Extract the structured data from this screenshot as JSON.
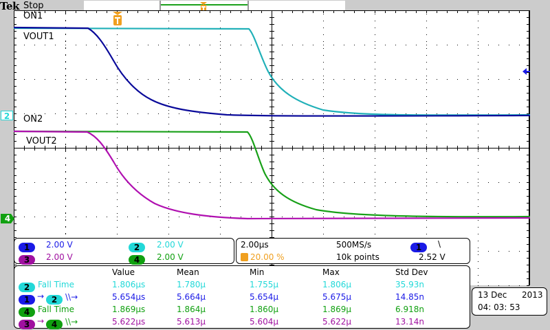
{
  "header": {
    "brand": "Tek",
    "acq_state": "Stop"
  },
  "colors": {
    "ch1": "#1a1ae6",
    "ch2": "#22d8d8",
    "ch3": "#a010a0",
    "ch4": "#10a010",
    "trigger": "#f0a020",
    "ch1_trace": "#0a0a9a",
    "ch2_trace": "#20b0b8",
    "ch3_trace": "#b010b0",
    "ch4_trace": "#18a018"
  },
  "traces": {
    "on1_label": "ON1",
    "vout1_label": "VOUT1",
    "on2_label": "ON2",
    "vout2_label": "VOUT2"
  },
  "markers": {
    "ch2": "2",
    "ch4": "4",
    "trigger": "T"
  },
  "channels": [
    {
      "num": "1",
      "scale": "2.00 V"
    },
    {
      "num": "2",
      "scale": "2.00 V"
    },
    {
      "num": "3",
      "scale": "2.00 V"
    },
    {
      "num": "4",
      "scale": "2.00 V"
    }
  ],
  "timebase": {
    "scale": "2.00µs",
    "trigger_pos": "20.00 %",
    "sample_rate": "500MS/s",
    "record_length": "10k points",
    "trigger_source": "1",
    "trigger_slope": "\\",
    "trigger_level": "2.52 V"
  },
  "measurements": {
    "headers": [
      "Value",
      "Mean",
      "Min",
      "Max",
      "Std Dev"
    ],
    "rows": [
      {
        "label": "Fall Time",
        "src": "2",
        "dst": "",
        "value": "1.806µs",
        "mean": "1.780µ",
        "min": "1.755µ",
        "max": "1.806µ",
        "std": "35.93n"
      },
      {
        "label": "\\\\→",
        "src": "1",
        "dst": "2",
        "value": "5.654µs",
        "mean": "5.664µ",
        "min": "5.654µ",
        "max": "5.675µ",
        "std": "14.85n"
      },
      {
        "label": "Fall Time",
        "src": "4",
        "dst": "",
        "value": "1.869µs",
        "mean": "1.864µ",
        "min": "1.860µ",
        "max": "1.869µ",
        "std": "6.918n"
      },
      {
        "label": "\\\\→",
        "src": "3",
        "dst": "4",
        "value": "5.622µs",
        "mean": "5.613µ",
        "min": "5.604µ",
        "max": "5.622µ",
        "std": "13.14n"
      }
    ]
  },
  "datetime": {
    "date": "13 Dec",
    "year": "2013",
    "time": "04: 03: 53"
  }
}
